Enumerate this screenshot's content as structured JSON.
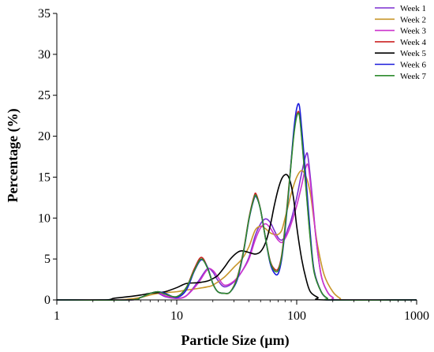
{
  "chart_data": {
    "type": "line",
    "xlabel": "Particle Size (µm)",
    "ylabel": "Percentage (%)",
    "x_scale": "log",
    "xlim": [
      1,
      1000
    ],
    "ylim": [
      0,
      35
    ],
    "x_ticks": [
      1,
      10,
      100,
      1000
    ],
    "x_tick_labels": [
      "1",
      "10",
      "100",
      "1000"
    ],
    "y_ticks": [
      0,
      5,
      10,
      15,
      20,
      25,
      30,
      35
    ],
    "y_tick_labels": [
      "0",
      "5",
      "10",
      "15",
      "20",
      "25",
      "30",
      "35"
    ],
    "grid": false,
    "legend_position": "top-right",
    "series": [
      {
        "name": "Week 1",
        "color": "#7b2fd0",
        "points": [
          [
            1,
            0
          ],
          [
            4,
            0
          ],
          [
            5,
            0.3
          ],
          [
            6,
            0.8
          ],
          [
            7,
            0.8
          ],
          [
            8,
            0.4
          ],
          [
            10,
            0.2
          ],
          [
            12,
            0.5
          ],
          [
            15,
            2.2
          ],
          [
            18,
            3.8
          ],
          [
            20,
            3.4
          ],
          [
            22,
            2.4
          ],
          [
            25,
            1.6
          ],
          [
            30,
            2.2
          ],
          [
            35,
            3.5
          ],
          [
            40,
            5.2
          ],
          [
            45,
            7.8
          ],
          [
            50,
            9.3
          ],
          [
            55,
            9.9
          ],
          [
            60,
            9.5
          ],
          [
            65,
            8.5
          ],
          [
            70,
            7.6
          ],
          [
            75,
            7.3
          ],
          [
            80,
            7.8
          ],
          [
            85,
            8.8
          ],
          [
            90,
            9.8
          ],
          [
            100,
            12.5
          ],
          [
            110,
            15.5
          ],
          [
            120,
            17.8
          ],
          [
            125,
            17.2
          ],
          [
            135,
            12.5
          ],
          [
            145,
            7.5
          ],
          [
            160,
            3.0
          ],
          [
            180,
            1.0
          ],
          [
            200,
            0.3
          ],
          [
            230,
            0
          ],
          [
            1000,
            0
          ]
        ]
      },
      {
        "name": "Week 2",
        "color": "#c8962a",
        "points": [
          [
            1,
            0
          ],
          [
            3,
            0
          ],
          [
            4,
            0.1
          ],
          [
            5,
            0.3
          ],
          [
            6,
            0.6
          ],
          [
            7,
            0.8
          ],
          [
            8,
            0.9
          ],
          [
            10,
            1.0
          ],
          [
            12,
            1.2
          ],
          [
            15,
            1.4
          ],
          [
            18,
            1.6
          ],
          [
            20,
            1.8
          ],
          [
            25,
            2.8
          ],
          [
            30,
            4.0
          ],
          [
            35,
            5.0
          ],
          [
            40,
            6.5
          ],
          [
            45,
            8.5
          ],
          [
            50,
            9.0
          ],
          [
            55,
            8.7
          ],
          [
            60,
            8.2
          ],
          [
            65,
            8.0
          ],
          [
            70,
            8.0
          ],
          [
            75,
            8.5
          ],
          [
            80,
            10.0
          ],
          [
            85,
            11.5
          ],
          [
            90,
            13.0
          ],
          [
            100,
            15.0
          ],
          [
            110,
            15.8
          ],
          [
            120,
            15.0
          ],
          [
            130,
            13.0
          ],
          [
            140,
            9.5
          ],
          [
            150,
            6.5
          ],
          [
            170,
            3.0
          ],
          [
            200,
            1.0
          ],
          [
            230,
            0.2
          ],
          [
            260,
            0
          ],
          [
            1000,
            0
          ]
        ]
      },
      {
        "name": "Week 3",
        "color": "#cc33cc",
        "points": [
          [
            1,
            0
          ],
          [
            4,
            0
          ],
          [
            5,
            0.3
          ],
          [
            6,
            0.8
          ],
          [
            7,
            0.9
          ],
          [
            8,
            0.5
          ],
          [
            10,
            0.2
          ],
          [
            12,
            0.5
          ],
          [
            15,
            2.0
          ],
          [
            18,
            3.7
          ],
          [
            20,
            3.6
          ],
          [
            22,
            2.8
          ],
          [
            25,
            1.8
          ],
          [
            30,
            2.3
          ],
          [
            35,
            3.5
          ],
          [
            40,
            5.0
          ],
          [
            45,
            7.3
          ],
          [
            50,
            8.8
          ],
          [
            55,
            9.3
          ],
          [
            60,
            8.8
          ],
          [
            65,
            8.0
          ],
          [
            70,
            7.3
          ],
          [
            75,
            7.0
          ],
          [
            80,
            7.5
          ],
          [
            85,
            8.3
          ],
          [
            90,
            9.3
          ],
          [
            100,
            11.5
          ],
          [
            110,
            14.0
          ],
          [
            118,
            16.0
          ],
          [
            125,
            16.3
          ],
          [
            135,
            12.0
          ],
          [
            145,
            7.5
          ],
          [
            160,
            3.0
          ],
          [
            180,
            1.0
          ],
          [
            200,
            0.3
          ],
          [
            230,
            0
          ],
          [
            1000,
            0
          ]
        ]
      },
      {
        "name": "Week 4",
        "color": "#cc2222",
        "points": [
          [
            1,
            0
          ],
          [
            4,
            0
          ],
          [
            5,
            0.3
          ],
          [
            6,
            0.8
          ],
          [
            7,
            1.0
          ],
          [
            8,
            0.7
          ],
          [
            10,
            0.4
          ],
          [
            12,
            1.5
          ],
          [
            14,
            3.8
          ],
          [
            16,
            5.2
          ],
          [
            18,
            4.0
          ],
          [
            20,
            2.0
          ],
          [
            22,
            1.0
          ],
          [
            25,
            0.8
          ],
          [
            28,
            1.0
          ],
          [
            32,
            2.8
          ],
          [
            36,
            6.0
          ],
          [
            40,
            10.0
          ],
          [
            44,
            12.6
          ],
          [
            46,
            12.9
          ],
          [
            50,
            11.0
          ],
          [
            55,
            7.5
          ],
          [
            60,
            4.8
          ],
          [
            65,
            3.8
          ],
          [
            70,
            3.8
          ],
          [
            75,
            5.5
          ],
          [
            80,
            9.0
          ],
          [
            85,
            13.0
          ],
          [
            90,
            17.0
          ],
          [
            95,
            20.5
          ],
          [
            100,
            22.6
          ],
          [
            105,
            22.8
          ],
          [
            110,
            20.0
          ],
          [
            120,
            13.5
          ],
          [
            130,
            7.5
          ],
          [
            140,
            3.5
          ],
          [
            160,
            1.0
          ],
          [
            180,
            0.2
          ],
          [
            200,
            0
          ],
          [
            1000,
            0
          ]
        ]
      },
      {
        "name": "Week 5",
        "color": "#000000",
        "points": [
          [
            1,
            0
          ],
          [
            2.5,
            0
          ],
          [
            3,
            0.2
          ],
          [
            4,
            0.4
          ],
          [
            5,
            0.6
          ],
          [
            6,
            0.8
          ],
          [
            7,
            0.9
          ],
          [
            8,
            1.0
          ],
          [
            10,
            1.5
          ],
          [
            12,
            2.0
          ],
          [
            15,
            2.1
          ],
          [
            18,
            2.3
          ],
          [
            20,
            2.6
          ],
          [
            22,
            3.0
          ],
          [
            25,
            4.0
          ],
          [
            28,
            5.0
          ],
          [
            32,
            5.8
          ],
          [
            35,
            6.0
          ],
          [
            40,
            5.8
          ],
          [
            45,
            5.6
          ],
          [
            50,
            5.9
          ],
          [
            55,
            7.0
          ],
          [
            60,
            9.0
          ],
          [
            65,
            11.5
          ],
          [
            70,
            13.5
          ],
          [
            75,
            14.8
          ],
          [
            80,
            15.3
          ],
          [
            85,
            15.1
          ],
          [
            90,
            14.0
          ],
          [
            95,
            12.0
          ],
          [
            100,
            9.0
          ],
          [
            110,
            5.0
          ],
          [
            120,
            2.5
          ],
          [
            130,
            1.0
          ],
          [
            150,
            0.3
          ],
          [
            170,
            0
          ],
          [
            1000,
            0
          ]
        ]
      },
      {
        "name": "Week 6",
        "color": "#1a1adb",
        "points": [
          [
            1,
            0
          ],
          [
            4,
            0
          ],
          [
            5,
            0.3
          ],
          [
            6,
            0.8
          ],
          [
            7,
            1.0
          ],
          [
            8,
            0.8
          ],
          [
            10,
            0.3
          ],
          [
            12,
            1.2
          ],
          [
            14,
            3.5
          ],
          [
            16,
            4.9
          ],
          [
            18,
            4.0
          ],
          [
            20,
            2.0
          ],
          [
            22,
            1.0
          ],
          [
            25,
            0.8
          ],
          [
            28,
            1.0
          ],
          [
            32,
            2.5
          ],
          [
            36,
            5.8
          ],
          [
            40,
            9.8
          ],
          [
            44,
            12.3
          ],
          [
            46,
            12.6
          ],
          [
            50,
            11.0
          ],
          [
            55,
            7.5
          ],
          [
            60,
            4.5
          ],
          [
            65,
            3.3
          ],
          [
            70,
            3.2
          ],
          [
            75,
            5.0
          ],
          [
            80,
            8.5
          ],
          [
            85,
            12.5
          ],
          [
            90,
            17.0
          ],
          [
            95,
            21.0
          ],
          [
            100,
            23.4
          ],
          [
            105,
            23.8
          ],
          [
            110,
            21.0
          ],
          [
            120,
            14.5
          ],
          [
            130,
            8.0
          ],
          [
            140,
            3.5
          ],
          [
            160,
            1.0
          ],
          [
            180,
            0.2
          ],
          [
            200,
            0
          ],
          [
            1000,
            0
          ]
        ]
      },
      {
        "name": "Week 7",
        "color": "#2e8b2e",
        "points": [
          [
            1,
            0
          ],
          [
            4,
            0
          ],
          [
            5,
            0.3
          ],
          [
            6,
            0.8
          ],
          [
            7,
            1.0
          ],
          [
            8,
            0.7
          ],
          [
            10,
            0.4
          ],
          [
            12,
            1.5
          ],
          [
            14,
            3.6
          ],
          [
            16,
            5.0
          ],
          [
            18,
            3.9
          ],
          [
            20,
            2.0
          ],
          [
            22,
            1.0
          ],
          [
            25,
            0.8
          ],
          [
            28,
            1.0
          ],
          [
            32,
            2.7
          ],
          [
            36,
            5.9
          ],
          [
            40,
            9.9
          ],
          [
            44,
            12.4
          ],
          [
            46,
            12.7
          ],
          [
            50,
            11.0
          ],
          [
            55,
            7.5
          ],
          [
            60,
            4.7
          ],
          [
            65,
            3.6
          ],
          [
            70,
            3.6
          ],
          [
            75,
            5.3
          ],
          [
            80,
            8.8
          ],
          [
            85,
            12.8
          ],
          [
            90,
            16.8
          ],
          [
            95,
            20.3
          ],
          [
            100,
            22.4
          ],
          [
            105,
            22.6
          ],
          [
            110,
            19.8
          ],
          [
            120,
            13.3
          ],
          [
            130,
            7.3
          ],
          [
            140,
            3.3
          ],
          [
            160,
            1.0
          ],
          [
            180,
            0.2
          ],
          [
            200,
            0
          ],
          [
            1000,
            0
          ]
        ]
      }
    ]
  }
}
